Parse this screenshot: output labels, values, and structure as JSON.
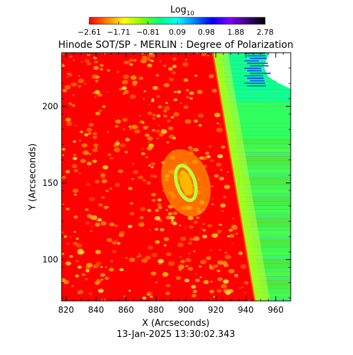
{
  "chart_data": {
    "type": "heatmap",
    "title": "Hinode SOT/SP - MERLIN : Degree of Polarization",
    "xlabel": "X (Arcseconds)",
    "ylabel": "Y (Arcseconds)",
    "footer": "13-Jan-2025 13:30:02.343",
    "colorbar": {
      "label_base": "Log",
      "label_sub": "10",
      "ticks": [
        "-2.61",
        "-1.71",
        "-0.81",
        "0.09",
        "0.98",
        "1.88",
        "2.78"
      ],
      "range": [
        -2.61,
        2.78
      ],
      "colors": [
        "#ff0000",
        "#ff8000",
        "#ffff00",
        "#80ff00",
        "#00ff80",
        "#00ffff",
        "#0080ff",
        "#0000ff",
        "#8000ff",
        "#400080",
        "#000000"
      ]
    },
    "xlim": [
      817,
      970
    ],
    "ylim": [
      73,
      235
    ],
    "xticks": [
      820,
      840,
      860,
      880,
      900,
      920,
      940,
      960
    ],
    "yticks": [
      100,
      150,
      200
    ],
    "xtick_labels": [
      "820",
      "840",
      "860",
      "880",
      "900",
      "920",
      "940",
      "960"
    ],
    "ytick_labels": [
      "100",
      "150",
      "200"
    ],
    "features": {
      "limb_x_at_top": 918,
      "limb_x_at_bottom": 946,
      "sunspot_center": [
        900,
        150
      ],
      "offlimb_gap_region": {
        "x": [
          952,
          970
        ],
        "y": [
          215,
          235
        ]
      }
    }
  }
}
